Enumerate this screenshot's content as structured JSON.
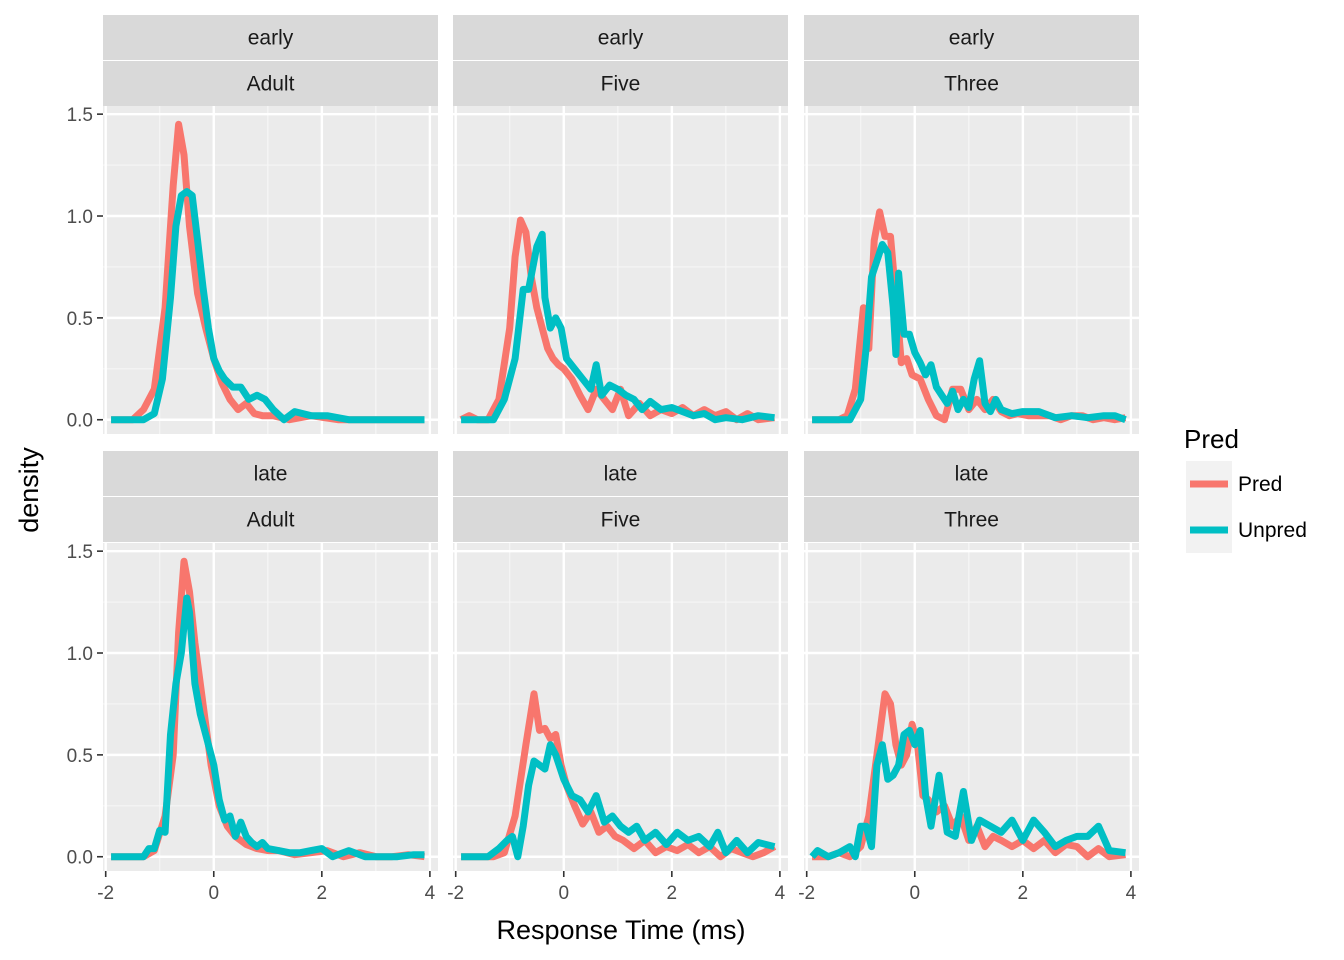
{
  "chart_data": {
    "type": "line",
    "xlabel": "Response Time (ms)",
    "ylabel": "density",
    "xlim": [
      -2.05,
      4.15
    ],
    "ylim": [
      -0.07,
      1.54
    ],
    "x_ticks": [
      -2,
      0,
      2,
      4
    ],
    "x_tick_labels": [
      "-2",
      "0",
      "2",
      "4"
    ],
    "y_ticks": [
      0,
      0.5,
      1.0,
      1.5
    ],
    "y_tick_labels": [
      "0.0",
      "0.5",
      "1.0",
      "1.5"
    ],
    "grid": true,
    "legend": {
      "title": "Pred",
      "position": "right",
      "entries": [
        {
          "label": "Pred",
          "color": "#F8766D"
        },
        {
          "label": "Unpred",
          "color": "#00BFC4"
        }
      ]
    },
    "panels": [
      {
        "strip_top": "early",
        "strip_bottom": "Adult",
        "series": [
          {
            "name": "Pred",
            "x": [
              -1.9,
              -1.5,
              -1.3,
              -1.1,
              -0.9,
              -0.75,
              -0.65,
              -0.55,
              -0.45,
              -0.3,
              -0.15,
              0.0,
              0.15,
              0.3,
              0.45,
              0.6,
              0.75,
              0.9,
              1.1,
              1.4,
              1.8,
              2.3,
              2.8,
              3.3,
              3.9
            ],
            "y": [
              0.0,
              0.0,
              0.05,
              0.15,
              0.55,
              1.15,
              1.45,
              1.3,
              0.95,
              0.62,
              0.45,
              0.3,
              0.18,
              0.1,
              0.05,
              0.08,
              0.03,
              0.02,
              0.02,
              0.0,
              0.02,
              0.0,
              0.0,
              0.0,
              0.0
            ]
          },
          {
            "name": "Unpred",
            "x": [
              -1.9,
              -1.3,
              -1.1,
              -0.95,
              -0.8,
              -0.7,
              -0.6,
              -0.5,
              -0.4,
              -0.3,
              -0.2,
              -0.1,
              0.0,
              0.1,
              0.2,
              0.35,
              0.5,
              0.65,
              0.8,
              0.95,
              1.1,
              1.3,
              1.5,
              1.8,
              2.1,
              2.5,
              3.0,
              3.5,
              3.9
            ],
            "y": [
              0.0,
              0.0,
              0.03,
              0.2,
              0.6,
              0.95,
              1.1,
              1.12,
              1.1,
              0.88,
              0.65,
              0.45,
              0.3,
              0.24,
              0.2,
              0.16,
              0.16,
              0.1,
              0.12,
              0.1,
              0.05,
              0.0,
              0.04,
              0.02,
              0.02,
              0.0,
              0.0,
              0.0,
              0.0
            ]
          }
        ]
      },
      {
        "strip_top": "early",
        "strip_bottom": "Five",
        "series": [
          {
            "name": "Pred",
            "x": [
              -1.9,
              -1.75,
              -1.6,
              -1.4,
              -1.2,
              -1.0,
              -0.9,
              -0.8,
              -0.7,
              -0.6,
              -0.5,
              -0.4,
              -0.3,
              -0.2,
              -0.1,
              0.0,
              0.15,
              0.3,
              0.45,
              0.6,
              0.75,
              0.9,
              1.05,
              1.2,
              1.4,
              1.6,
              1.8,
              2.0,
              2.2,
              2.4,
              2.6,
              2.8,
              3.0,
              3.2,
              3.4,
              3.6,
              3.9
            ],
            "y": [
              0.0,
              0.02,
              0.0,
              0.0,
              0.1,
              0.45,
              0.8,
              0.98,
              0.92,
              0.7,
              0.55,
              0.45,
              0.35,
              0.3,
              0.27,
              0.25,
              0.2,
              0.12,
              0.05,
              0.15,
              0.1,
              0.05,
              0.15,
              0.02,
              0.08,
              0.02,
              0.05,
              0.03,
              0.06,
              0.02,
              0.05,
              0.02,
              0.04,
              0.0,
              0.03,
              0.0,
              0.01
            ]
          },
          {
            "name": "Unpred",
            "x": [
              -1.9,
              -1.5,
              -1.3,
              -1.1,
              -0.9,
              -0.75,
              -0.65,
              -0.5,
              -0.4,
              -0.35,
              -0.25,
              -0.15,
              -0.05,
              0.05,
              0.2,
              0.35,
              0.5,
              0.6,
              0.7,
              0.85,
              1.0,
              1.15,
              1.3,
              1.45,
              1.6,
              1.8,
              2.0,
              2.2,
              2.4,
              2.6,
              2.8,
              3.0,
              3.3,
              3.6,
              3.9
            ],
            "y": [
              0.0,
              0.0,
              0.0,
              0.1,
              0.3,
              0.64,
              0.64,
              0.85,
              0.91,
              0.6,
              0.45,
              0.5,
              0.45,
              0.3,
              0.25,
              0.2,
              0.15,
              0.27,
              0.12,
              0.17,
              0.15,
              0.12,
              0.1,
              0.05,
              0.09,
              0.05,
              0.06,
              0.04,
              0.02,
              0.03,
              0.0,
              0.01,
              0.0,
              0.02,
              0.01
            ]
          }
        ]
      },
      {
        "strip_top": "early",
        "strip_bottom": "Three",
        "series": [
          {
            "name": "Pred",
            "x": [
              -1.9,
              -1.4,
              -1.25,
              -1.1,
              -0.95,
              -0.85,
              -0.75,
              -0.65,
              -0.55,
              -0.45,
              -0.35,
              -0.25,
              -0.15,
              -0.05,
              0.1,
              0.25,
              0.4,
              0.55,
              0.7,
              0.85,
              1.0,
              1.15,
              1.3,
              1.45,
              1.6,
              1.75,
              1.9,
              2.1,
              2.3,
              2.5,
              2.7,
              2.9,
              3.1,
              3.3,
              3.5,
              3.7,
              3.9
            ],
            "y": [
              0.0,
              0.0,
              0.02,
              0.15,
              0.55,
              0.35,
              0.88,
              1.02,
              0.9,
              0.9,
              0.6,
              0.28,
              0.3,
              0.22,
              0.2,
              0.1,
              0.02,
              0.0,
              0.15,
              0.15,
              0.05,
              0.1,
              0.05,
              0.1,
              0.04,
              0.02,
              0.03,
              0.02,
              0.02,
              0.02,
              0.0,
              0.02,
              0.02,
              0.0,
              0.01,
              0.0,
              0.01
            ]
          },
          {
            "name": "Unpred",
            "x": [
              -1.9,
              -1.4,
              -1.2,
              -1.0,
              -0.9,
              -0.8,
              -0.7,
              -0.6,
              -0.5,
              -0.4,
              -0.35,
              -0.3,
              -0.2,
              -0.1,
              0.0,
              0.1,
              0.2,
              0.3,
              0.4,
              0.5,
              0.6,
              0.7,
              0.8,
              0.9,
              1.0,
              1.1,
              1.2,
              1.3,
              1.4,
              1.5,
              1.6,
              1.8,
              2.0,
              2.3,
              2.6,
              2.9,
              3.2,
              3.5,
              3.7,
              3.9
            ],
            "y": [
              0.0,
              0.0,
              0.0,
              0.1,
              0.35,
              0.7,
              0.78,
              0.86,
              0.82,
              0.55,
              0.32,
              0.72,
              0.42,
              0.42,
              0.33,
              0.28,
              0.22,
              0.27,
              0.16,
              0.12,
              0.08,
              0.14,
              0.05,
              0.1,
              0.06,
              0.2,
              0.29,
              0.08,
              0.04,
              0.1,
              0.05,
              0.03,
              0.04,
              0.04,
              0.01,
              0.02,
              0.01,
              0.02,
              0.02,
              0.0
            ]
          }
        ]
      },
      {
        "strip_top": "late",
        "strip_bottom": "Adult",
        "series": [
          {
            "name": "Pred",
            "x": [
              -1.9,
              -1.3,
              -1.1,
              -0.9,
              -0.75,
              -0.65,
              -0.55,
              -0.45,
              -0.35,
              -0.2,
              -0.05,
              0.1,
              0.25,
              0.4,
              0.6,
              0.8,
              1.0,
              1.2,
              1.5,
              1.8,
              2.1,
              2.4,
              2.7,
              3.0,
              3.3,
              3.6,
              3.9
            ],
            "y": [
              0.0,
              0.0,
              0.03,
              0.2,
              0.5,
              1.1,
              1.45,
              1.3,
              1.05,
              0.75,
              0.45,
              0.25,
              0.15,
              0.1,
              0.06,
              0.04,
              0.03,
              0.03,
              0.01,
              0.02,
              0.03,
              0.0,
              0.02,
              0.0,
              0.0,
              0.01,
              0.0
            ]
          },
          {
            "name": "Unpred",
            "x": [
              -1.9,
              -1.3,
              -1.2,
              -1.1,
              -1.0,
              -0.9,
              -0.8,
              -0.7,
              -0.6,
              -0.5,
              -0.45,
              -0.35,
              -0.25,
              -0.15,
              0.0,
              0.1,
              0.2,
              0.3,
              0.4,
              0.5,
              0.6,
              0.7,
              0.8,
              0.9,
              1.0,
              1.2,
              1.4,
              1.6,
              1.8,
              2.0,
              2.2,
              2.5,
              2.8,
              3.1,
              3.4,
              3.7,
              3.9
            ],
            "y": [
              0.0,
              0.0,
              0.04,
              0.04,
              0.13,
              0.12,
              0.6,
              0.85,
              1.0,
              1.27,
              1.2,
              0.85,
              0.7,
              0.6,
              0.45,
              0.28,
              0.18,
              0.2,
              0.1,
              0.17,
              0.1,
              0.07,
              0.05,
              0.07,
              0.04,
              0.03,
              0.02,
              0.02,
              0.03,
              0.04,
              0.0,
              0.03,
              0.0,
              0.0,
              0.0,
              0.01,
              0.01
            ]
          }
        ]
      },
      {
        "strip_top": "late",
        "strip_bottom": "Five",
        "series": [
          {
            "name": "Pred",
            "x": [
              -1.9,
              -1.3,
              -1.1,
              -0.9,
              -0.7,
              -0.55,
              -0.45,
              -0.35,
              -0.25,
              -0.15,
              -0.05,
              0.05,
              0.2,
              0.35,
              0.5,
              0.65,
              0.8,
              0.95,
              1.1,
              1.3,
              1.5,
              1.7,
              1.9,
              2.1,
              2.3,
              2.5,
              2.7,
              2.9,
              3.1,
              3.3,
              3.5,
              3.7,
              3.9
            ],
            "y": [
              0.0,
              0.0,
              0.02,
              0.2,
              0.55,
              0.8,
              0.62,
              0.63,
              0.58,
              0.6,
              0.45,
              0.35,
              0.25,
              0.16,
              0.22,
              0.12,
              0.15,
              0.1,
              0.08,
              0.04,
              0.08,
              0.02,
              0.05,
              0.03,
              0.06,
              0.02,
              0.05,
              0.0,
              0.04,
              0.02,
              0.0,
              0.02,
              0.05
            ]
          },
          {
            "name": "Unpred",
            "x": [
              -1.9,
              -1.4,
              -1.2,
              -1.05,
              -0.95,
              -0.85,
              -0.75,
              -0.65,
              -0.55,
              -0.45,
              -0.35,
              -0.25,
              -0.15,
              0.0,
              0.15,
              0.3,
              0.45,
              0.6,
              0.75,
              0.9,
              1.05,
              1.2,
              1.35,
              1.5,
              1.7,
              1.9,
              2.1,
              2.3,
              2.5,
              2.7,
              2.85,
              3.0,
              3.2,
              3.4,
              3.6,
              3.9
            ],
            "y": [
              0.0,
              0.0,
              0.04,
              0.08,
              0.1,
              0.0,
              0.15,
              0.35,
              0.47,
              0.45,
              0.43,
              0.55,
              0.5,
              0.38,
              0.3,
              0.28,
              0.22,
              0.3,
              0.17,
              0.2,
              0.15,
              0.12,
              0.15,
              0.08,
              0.12,
              0.06,
              0.12,
              0.08,
              0.1,
              0.05,
              0.12,
              0.02,
              0.08,
              0.02,
              0.07,
              0.05
            ]
          }
        ]
      },
      {
        "strip_top": "late",
        "strip_bottom": "Three",
        "series": [
          {
            "name": "Pred",
            "x": [
              -1.9,
              -1.6,
              -1.4,
              -1.2,
              -1.0,
              -0.85,
              -0.7,
              -0.55,
              -0.45,
              -0.35,
              -0.25,
              -0.15,
              -0.05,
              0.05,
              0.15,
              0.25,
              0.4,
              0.55,
              0.7,
              0.85,
              1.0,
              1.15,
              1.3,
              1.45,
              1.6,
              1.8,
              2.0,
              2.2,
              2.4,
              2.6,
              2.8,
              3.0,
              3.2,
              3.4,
              3.6,
              3.9
            ],
            "y": [
              0.0,
              0.0,
              0.02,
              0.0,
              0.05,
              0.2,
              0.5,
              0.8,
              0.75,
              0.55,
              0.45,
              0.5,
              0.65,
              0.55,
              0.3,
              0.28,
              0.22,
              0.25,
              0.15,
              0.2,
              0.08,
              0.15,
              0.05,
              0.1,
              0.08,
              0.05,
              0.08,
              0.04,
              0.08,
              0.02,
              0.06,
              0.05,
              0.0,
              0.04,
              0.0,
              0.01
            ]
          },
          {
            "name": "Unpred",
            "x": [
              -1.9,
              -1.8,
              -1.6,
              -1.4,
              -1.2,
              -1.1,
              -1.0,
              -0.9,
              -0.8,
              -0.7,
              -0.6,
              -0.5,
              -0.4,
              -0.3,
              -0.2,
              -0.1,
              0.0,
              0.1,
              0.2,
              0.3,
              0.45,
              0.6,
              0.75,
              0.9,
              1.05,
              1.2,
              1.4,
              1.6,
              1.8,
              2.0,
              2.2,
              2.4,
              2.6,
              2.8,
              3.0,
              3.2,
              3.4,
              3.6,
              3.9
            ],
            "y": [
              0.0,
              0.03,
              0.0,
              0.02,
              0.05,
              0.0,
              0.15,
              0.15,
              0.05,
              0.45,
              0.55,
              0.38,
              0.4,
              0.45,
              0.6,
              0.62,
              0.55,
              0.62,
              0.3,
              0.15,
              0.4,
              0.12,
              0.1,
              0.32,
              0.08,
              0.18,
              0.15,
              0.12,
              0.18,
              0.08,
              0.18,
              0.12,
              0.05,
              0.08,
              0.1,
              0.1,
              0.15,
              0.03,
              0.02
            ]
          }
        ]
      }
    ]
  }
}
